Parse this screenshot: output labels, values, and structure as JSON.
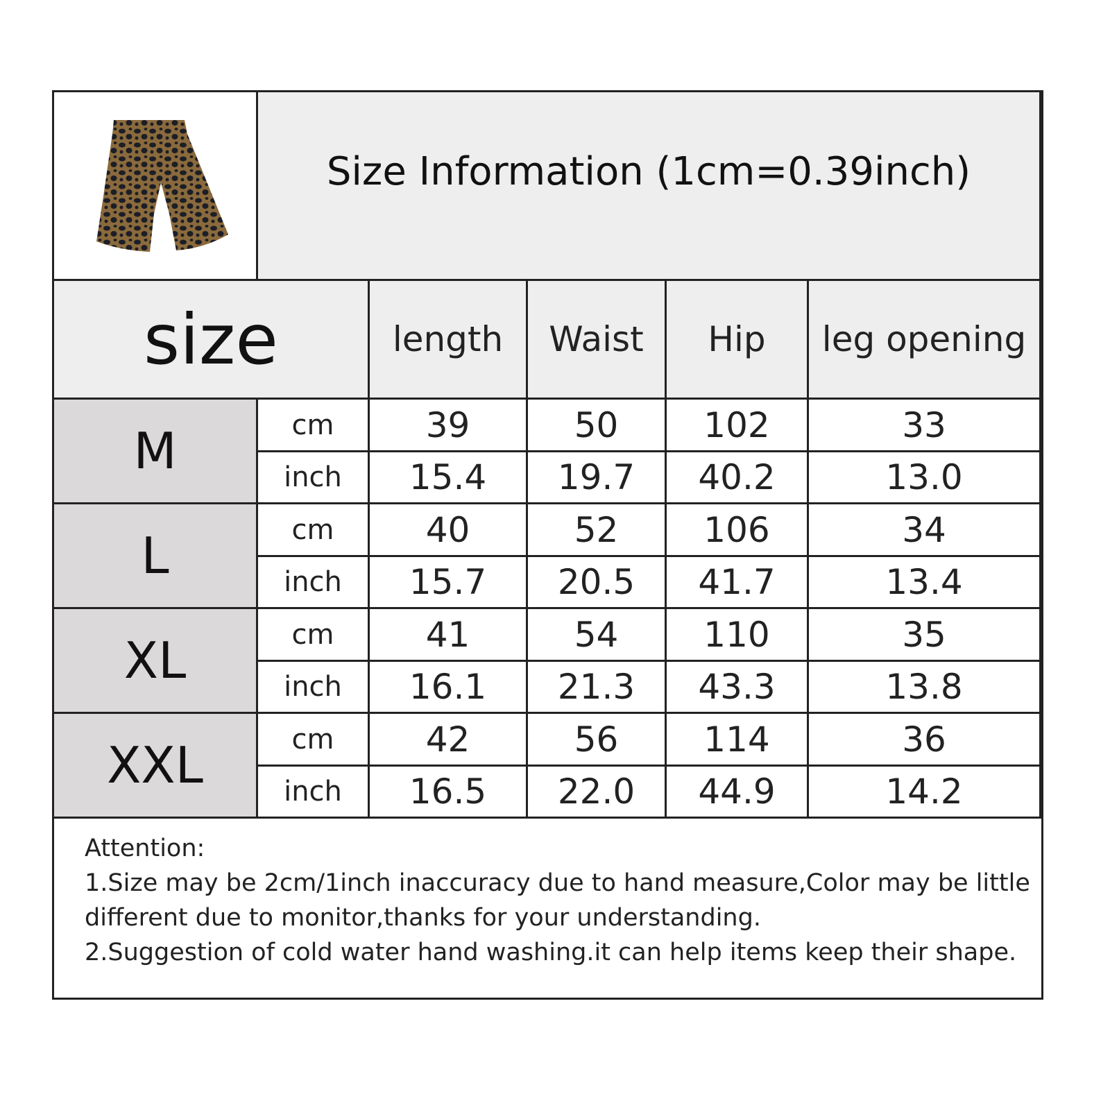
{
  "title": "Size Information (1cm=0.39inch)",
  "product_image": "leopard-print-shorts",
  "columns": [
    "size",
    "length",
    "Waist",
    "Hip",
    "leg opening"
  ],
  "rows": [
    {
      "size": "M",
      "cm": [
        "39",
        "50",
        "102",
        "33"
      ],
      "inch": [
        "15.4",
        "19.7",
        "40.2",
        "13.0"
      ]
    },
    {
      "size": "L",
      "cm": [
        "40",
        "52",
        "106",
        "34"
      ],
      "inch": [
        "15.7",
        "20.5",
        "41.7",
        "13.4"
      ]
    },
    {
      "size": "XL",
      "cm": [
        "41",
        "54",
        "110",
        "35"
      ],
      "inch": [
        "16.1",
        "21.3",
        "43.3",
        "13.8"
      ]
    },
    {
      "size": "XXL",
      "cm": [
        "42",
        "56",
        "114",
        "36"
      ],
      "inch": [
        "16.5",
        "22.0",
        "44.9",
        "14.2"
      ]
    }
  ],
  "units": {
    "cm": "cm",
    "inch": "inch"
  },
  "attention": {
    "heading": "Attention:",
    "lines": [
      "1.Size may be 2cm/1inch inaccuracy due to hand measure,Color may be little different due to monitor,thanks for your understanding.",
      "2.Suggestion of cold water hand washing.it can help items keep their shape."
    ]
  }
}
